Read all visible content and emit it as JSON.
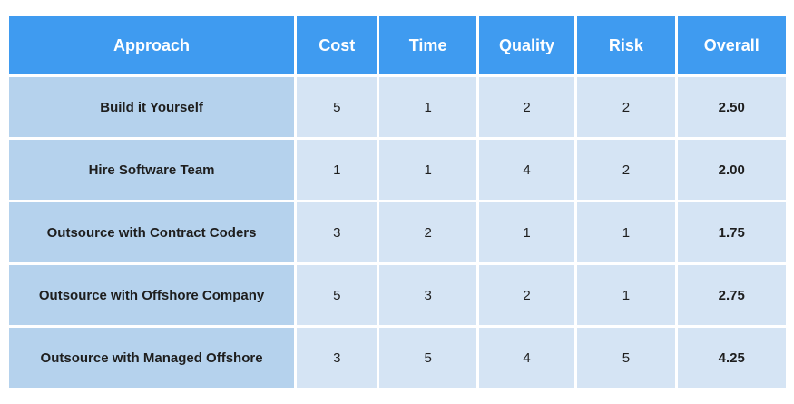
{
  "colors": {
    "header_bg": "#3f9bf0",
    "header_text": "#ffffff",
    "approach_bg": "#b5d2ed",
    "cell_bg": "#d5e4f4"
  },
  "chart_data": {
    "type": "table",
    "columns": [
      "Approach",
      "Cost",
      "Time",
      "Quality",
      "Risk",
      "Overall"
    ],
    "rows": [
      [
        "Build it Yourself",
        "5",
        "1",
        "2",
        "2",
        "2.50"
      ],
      [
        "Hire Software Team",
        "1",
        "1",
        "4",
        "2",
        "2.00"
      ],
      [
        "Outsource with Contract Coders",
        "3",
        "2",
        "1",
        "1",
        "1.75"
      ],
      [
        "Outsource with Offshore Company",
        "5",
        "3",
        "2",
        "1",
        "2.75"
      ],
      [
        "Outsource with Managed Offshore",
        "3",
        "5",
        "4",
        "5",
        "4.25"
      ]
    ]
  }
}
